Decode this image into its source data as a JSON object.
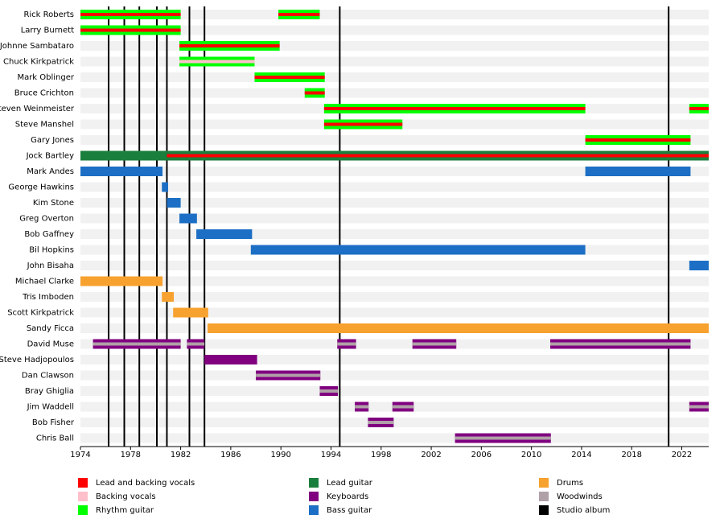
{
  "chart_data": {
    "type": "timeline",
    "xlim": [
      1974,
      2024.15
    ],
    "xticks": [
      1974,
      1978,
      1982,
      1986,
      1990,
      1994,
      1998,
      2002,
      2006,
      2010,
      2014,
      2018,
      2022
    ],
    "legend": [
      {
        "name": "Lead and backing vocals",
        "color": "#ff0000"
      },
      {
        "name": "Backing vocals",
        "color": "#ffc0cb"
      },
      {
        "name": "Rhythm guitar",
        "color": "#00ff00"
      },
      {
        "name": "Lead guitar",
        "color": "#1a7f3c"
      },
      {
        "name": "Keyboards",
        "color": "#800080"
      },
      {
        "name": "Bass guitar",
        "color": "#1c6fc4"
      },
      {
        "name": "Drums",
        "color": "#f7a12e"
      },
      {
        "name": "Woodwinds",
        "color": "#b0a0a8"
      },
      {
        "name": "Studio album",
        "color": "#000000"
      }
    ],
    "albums": [
      1976.25,
      1977.5,
      1978.7,
      1980.1,
      1980.9,
      1982.7,
      1983.9,
      1994.7,
      2020.95
    ],
    "members": [
      {
        "name": "Rick Roberts",
        "spans": [
          {
            "start": 1974,
            "end": 1982,
            "roles": [
              "Rhythm guitar",
              "Lead and backing vocals"
            ]
          },
          {
            "start": 1989.8,
            "end": 1993.1,
            "roles": [
              "Rhythm guitar",
              "Lead and backing vocals"
            ]
          }
        ]
      },
      {
        "name": "Larry Burnett",
        "spans": [
          {
            "start": 1974,
            "end": 1982,
            "roles": [
              "Rhythm guitar",
              "Lead and backing vocals"
            ]
          }
        ]
      },
      {
        "name": "Johnne Sambataro",
        "spans": [
          {
            "start": 1981.9,
            "end": 1989.9,
            "roles": [
              "Rhythm guitar",
              "Lead and backing vocals"
            ]
          }
        ]
      },
      {
        "name": "Chuck Kirkpatrick",
        "spans": [
          {
            "start": 1981.9,
            "end": 1987.9,
            "roles": [
              "Rhythm guitar",
              "Backing vocals"
            ]
          }
        ]
      },
      {
        "name": "Mark Oblinger",
        "spans": [
          {
            "start": 1987.9,
            "end": 1993.5,
            "roles": [
              "Rhythm guitar",
              "Lead and backing vocals"
            ]
          }
        ]
      },
      {
        "name": "Bruce Crichton",
        "spans": [
          {
            "start": 1991.9,
            "end": 1993.5,
            "roles": [
              "Rhythm guitar",
              "Lead and backing vocals"
            ]
          }
        ]
      },
      {
        "name": "Steven Weinmeister",
        "spans": [
          {
            "start": 1993.45,
            "end": 2014.3,
            "roles": [
              "Rhythm guitar",
              "Lead and backing vocals"
            ]
          },
          {
            "start": 2022.6,
            "end": 2024.15,
            "roles": [
              "Rhythm guitar",
              "Lead and backing vocals"
            ]
          }
        ]
      },
      {
        "name": "Steve Manshel",
        "spans": [
          {
            "start": 1993.45,
            "end": 1999.7,
            "roles": [
              "Rhythm guitar",
              "Lead and backing vocals"
            ]
          }
        ]
      },
      {
        "name": "Gary Jones",
        "spans": [
          {
            "start": 2014.3,
            "end": 2022.7,
            "roles": [
              "Rhythm guitar",
              "Lead and backing vocals"
            ]
          }
        ]
      },
      {
        "name": "Jock Bartley",
        "spans": [
          {
            "start": 1974,
            "end": 1980.9,
            "roles": [
              "Lead guitar"
            ]
          },
          {
            "start": 1980.9,
            "end": 2024.15,
            "roles": [
              "Lead guitar",
              "Lead and backing vocals"
            ]
          }
        ]
      },
      {
        "name": "Mark Andes",
        "spans": [
          {
            "start": 1974,
            "end": 1980.55,
            "roles": [
              "Bass guitar"
            ]
          },
          {
            "start": 2014.3,
            "end": 2022.7,
            "roles": [
              "Bass guitar"
            ]
          }
        ]
      },
      {
        "name": "George Hawkins",
        "spans": [
          {
            "start": 1980.5,
            "end": 1981.0,
            "roles": [
              "Bass guitar"
            ]
          }
        ]
      },
      {
        "name": "Kim Stone",
        "spans": [
          {
            "start": 1980.9,
            "end": 1982,
            "roles": [
              "Bass guitar"
            ]
          }
        ]
      },
      {
        "name": "Greg Overton",
        "spans": [
          {
            "start": 1981.9,
            "end": 1983.3,
            "roles": [
              "Bass guitar"
            ]
          }
        ]
      },
      {
        "name": "Bob Gaffney",
        "spans": [
          {
            "start": 1983.25,
            "end": 1987.7,
            "roles": [
              "Bass guitar"
            ]
          }
        ]
      },
      {
        "name": "Bil Hopkins",
        "spans": [
          {
            "start": 1987.6,
            "end": 2014.3,
            "roles": [
              "Bass guitar"
            ]
          }
        ]
      },
      {
        "name": "John Bisaha",
        "spans": [
          {
            "start": 2022.6,
            "end": 2024.15,
            "roles": [
              "Bass guitar"
            ]
          }
        ]
      },
      {
        "name": "Michael Clarke",
        "spans": [
          {
            "start": 1974,
            "end": 1980.55,
            "roles": [
              "Drums"
            ]
          }
        ]
      },
      {
        "name": "Tris Imboden",
        "spans": [
          {
            "start": 1980.5,
            "end": 1981.45,
            "roles": [
              "Drums"
            ]
          }
        ]
      },
      {
        "name": "Scott Kirkpatrick",
        "spans": [
          {
            "start": 1981.4,
            "end": 1984.2,
            "roles": [
              "Drums"
            ]
          }
        ]
      },
      {
        "name": "Sandy Ficca",
        "spans": [
          {
            "start": 1984.15,
            "end": 2024.15,
            "roles": [
              "Drums"
            ]
          }
        ]
      },
      {
        "name": "David Muse",
        "spans": [
          {
            "start": 1975,
            "end": 1982,
            "roles": [
              "Keyboards",
              "Woodwinds"
            ]
          },
          {
            "start": 1982.5,
            "end": 1983.9,
            "roles": [
              "Keyboards",
              "Woodwinds"
            ]
          },
          {
            "start": 1994.5,
            "end": 1996,
            "roles": [
              "Keyboards",
              "Woodwinds"
            ]
          },
          {
            "start": 2000.5,
            "end": 2004,
            "roles": [
              "Keyboards",
              "Woodwinds"
            ]
          },
          {
            "start": 2011.5,
            "end": 2022.7,
            "roles": [
              "Keyboards",
              "Woodwinds"
            ]
          }
        ]
      },
      {
        "name": "Steve Hadjopoulos",
        "spans": [
          {
            "start": 1983.9,
            "end": 1988.1,
            "roles": [
              "Keyboards"
            ]
          }
        ]
      },
      {
        "name": "Dan Clawson",
        "spans": [
          {
            "start": 1988,
            "end": 1993.15,
            "roles": [
              "Keyboards",
              "Woodwinds"
            ]
          }
        ]
      },
      {
        "name": "Bray Ghiglia",
        "spans": [
          {
            "start": 1993.1,
            "end": 1994.55,
            "roles": [
              "Keyboards",
              "Woodwinds"
            ]
          }
        ]
      },
      {
        "name": "Jim Waddell",
        "spans": [
          {
            "start": 1995.9,
            "end": 1997,
            "roles": [
              "Keyboards",
              "Woodwinds"
            ]
          },
          {
            "start": 1998.9,
            "end": 2000.6,
            "roles": [
              "Keyboards",
              "Woodwinds"
            ]
          },
          {
            "start": 2022.6,
            "end": 2024.15,
            "roles": [
              "Keyboards",
              "Woodwinds"
            ]
          }
        ]
      },
      {
        "name": "Bob Fisher",
        "spans": [
          {
            "start": 1996.95,
            "end": 1999,
            "roles": [
              "Keyboards",
              "Woodwinds"
            ]
          }
        ]
      },
      {
        "name": "Chris Ball",
        "spans": [
          {
            "start": 2003.9,
            "end": 2011.55,
            "roles": [
              "Keyboards",
              "Woodwinds"
            ]
          }
        ]
      }
    ]
  }
}
